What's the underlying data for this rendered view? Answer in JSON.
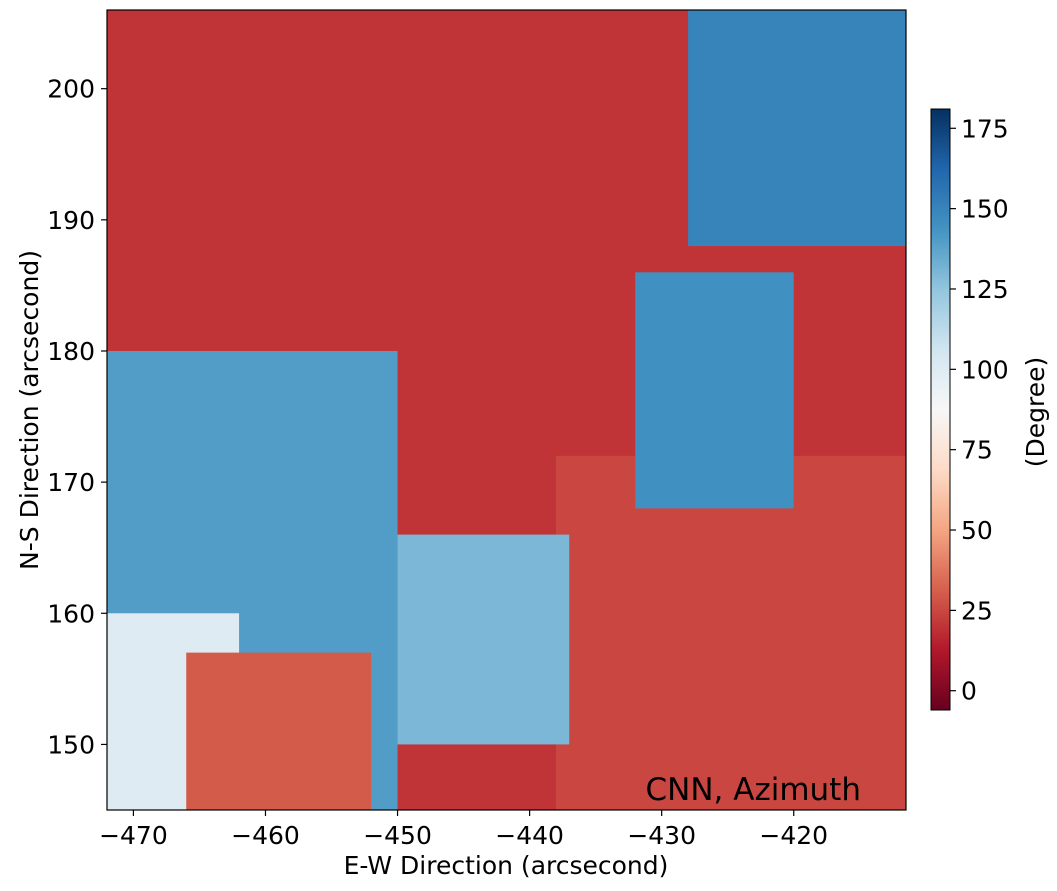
{
  "chart_data": {
    "type": "heatmap",
    "annotation": "CNN, Azimuth",
    "xlabel": "E-W Direction (arcsecond)",
    "ylabel": "N-S Direction (arcsecond)",
    "xlim": [
      -472,
      -411.5
    ],
    "ylim": [
      145,
      206
    ],
    "x_ticks": [
      -470,
      -460,
      -450,
      -440,
      -430,
      -420
    ],
    "y_ticks": [
      150,
      160,
      170,
      180,
      190,
      200
    ],
    "colorbar": {
      "label": "(Degree)",
      "range": [
        -6,
        181
      ],
      "ticks": [
        0,
        25,
        50,
        75,
        100,
        125,
        150,
        175
      ],
      "colormap": "RdBu",
      "colors": [
        "#67001f",
        "#b2182b",
        "#d6604d",
        "#f4a582",
        "#fddbc7",
        "#f7f7f7",
        "#d1e5f0",
        "#92c5de",
        "#4393c3",
        "#2166ac",
        "#053061"
      ]
    },
    "approx_regions": [
      {
        "x": [
          -472,
          -411.5
        ],
        "y": [
          178,
          206
        ],
        "value": 20
      },
      {
        "x": [
          -472,
          -450
        ],
        "y": [
          145,
          180
        ],
        "value": 140
      },
      {
        "x": [
          -472,
          -462
        ],
        "y": [
          145,
          160
        ],
        "value": 100
      },
      {
        "x": [
          -466,
          -452
        ],
        "y": [
          145,
          157
        ],
        "value": 30
      },
      {
        "x": [
          -438,
          -411.5
        ],
        "y": [
          145,
          172
        ],
        "value": 25
      },
      {
        "x": [
          -432,
          -420
        ],
        "y": [
          168,
          186
        ],
        "value": 145
      },
      {
        "x": [
          -428,
          -411.5
        ],
        "y": [
          188,
          206
        ],
        "value": 150
      },
      {
        "x": [
          -450,
          -437
        ],
        "y": [
          150,
          166
        ],
        "value": 130
      }
    ]
  }
}
